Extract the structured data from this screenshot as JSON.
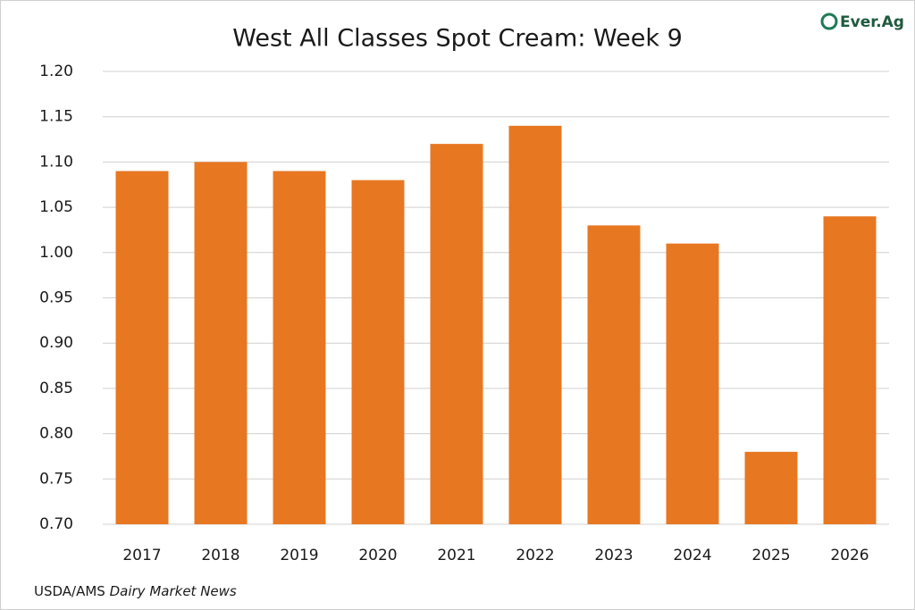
{
  "chart_data": {
    "type": "bar",
    "title": "West All Classes Spot Cream: Week 9",
    "categories": [
      "2017",
      "2018",
      "2019",
      "2020",
      "2021",
      "2022",
      "2023",
      "2024",
      "2025",
      "2026"
    ],
    "values": [
      1.09,
      1.1,
      1.09,
      1.08,
      1.12,
      1.14,
      1.03,
      1.01,
      0.78,
      1.04
    ],
    "color": "#e87722",
    "ylim": [
      0.7,
      1.2
    ],
    "yticks": [
      {
        "value": 0.7,
        "label": "0.70"
      },
      0.75,
      {
        "value": 0.8,
        "label": "0.80"
      },
      0.85,
      {
        "value": 0.9,
        "label": "0.90"
      },
      0.95,
      {
        "value": 1,
        "label": "1.00"
      },
      1.05,
      {
        "value": 1.1,
        "label": "1.10"
      },
      1.15,
      {
        "value": 1.2,
        "label": "1.20"
      }
    ],
    "grid": true,
    "source": "USDA/AMS",
    "source_italic": "Dairy Market News",
    "logo": "Ever.Ag"
  }
}
